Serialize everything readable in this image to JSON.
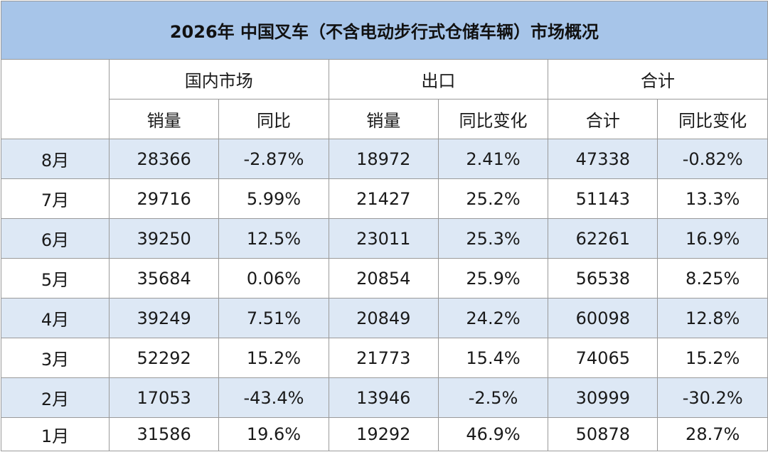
{
  "title": "2026年 中国叉车（不含电动步行式仓储车辆）市场概况",
  "groups": {
    "domestic": "国内市场",
    "export": "出口",
    "total": "合计"
  },
  "subheaders": {
    "domestic_sales": "销量",
    "domestic_yoy": "同比",
    "export_sales": "销量",
    "export_yoy": "同比变化",
    "total_sum": "合计",
    "total_yoy": "同比变化"
  },
  "rows": [
    {
      "month": "8月",
      "domestic_sales": "28366",
      "domestic_yoy": "-2.87%",
      "export_sales": "18972",
      "export_yoy": "2.41%",
      "total": "47338",
      "total_yoy": "-0.82%"
    },
    {
      "month": "7月",
      "domestic_sales": "29716",
      "domestic_yoy": "5.99%",
      "export_sales": "21427",
      "export_yoy": "25.2%",
      "total": "51143",
      "total_yoy": "13.3%"
    },
    {
      "month": "6月",
      "domestic_sales": "39250",
      "domestic_yoy": "12.5%",
      "export_sales": "23011",
      "export_yoy": "25.3%",
      "total": "62261",
      "total_yoy": "16.9%"
    },
    {
      "month": "5月",
      "domestic_sales": "35684",
      "domestic_yoy": "0.06%",
      "export_sales": "20854",
      "export_yoy": "25.9%",
      "total": "56538",
      "total_yoy": "8.25%"
    },
    {
      "month": "4月",
      "domestic_sales": "39249",
      "domestic_yoy": "7.51%",
      "export_sales": "20849",
      "export_yoy": "24.2%",
      "total": "60098",
      "total_yoy": "12.8%"
    },
    {
      "month": "3月",
      "domestic_sales": "52292",
      "domestic_yoy": "15.2%",
      "export_sales": "21773",
      "export_yoy": "15.4%",
      "total": "74065",
      "total_yoy": "15.2%"
    },
    {
      "month": "2月",
      "domestic_sales": "17053",
      "domestic_yoy": "-43.4%",
      "export_sales": "13946",
      "export_yoy": "-2.5%",
      "total": "30999",
      "total_yoy": "-30.2%"
    },
    {
      "month": "1月",
      "domestic_sales": "31586",
      "domestic_yoy": "19.6%",
      "export_sales": "19292",
      "export_yoy": "46.9%",
      "total": "50878",
      "total_yoy": "28.7%"
    }
  ],
  "colors": {
    "title_bg": "#a7c5e9",
    "row_alt_bg": "#dde8f5",
    "border": "#9a9a9a"
  }
}
